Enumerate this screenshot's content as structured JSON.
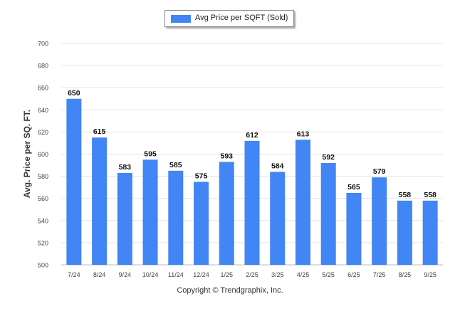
{
  "legend": {
    "label": "Avg Price per SQFT (Sold)"
  },
  "footer": {
    "text": "Copyright © Trendgraphix, Inc."
  },
  "colors": {
    "bar": "#4285f4",
    "grid": "#e6e6e6",
    "text": "#333333"
  },
  "chart_data": {
    "type": "bar",
    "title": "",
    "xlabel": "",
    "ylabel": "Avg. Price per SQ. FT.",
    "categories": [
      "7/24",
      "8/24",
      "9/24",
      "10/24",
      "11/24",
      "12/24",
      "1/25",
      "2/25",
      "3/25",
      "4/25",
      "5/25",
      "6/25",
      "7/25",
      "8/25",
      "9/25"
    ],
    "series": [
      {
        "name": "Avg Price per SQFT (Sold)",
        "values": [
          650,
          615,
          583,
          595,
          585,
          575,
          593,
          612,
          584,
          613,
          592,
          565,
          579,
          558,
          558
        ]
      }
    ],
    "ylim": [
      500,
      700
    ],
    "yticks": [
      500,
      520,
      540,
      560,
      580,
      600,
      620,
      640,
      660,
      680,
      700
    ],
    "grid": true,
    "legend_position": "top-center"
  }
}
